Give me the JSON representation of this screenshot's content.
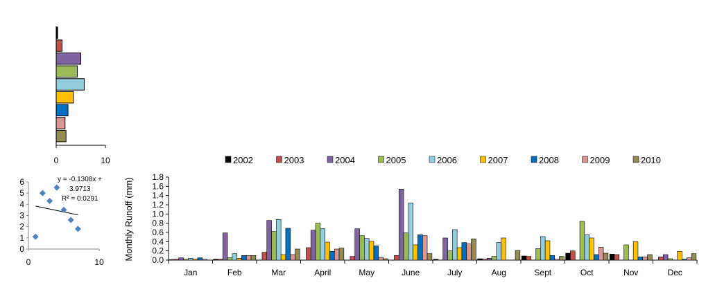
{
  "chart_data": [
    {
      "type": "bar",
      "orientation": "horizontal",
      "series_names": [
        "2002",
        "2003",
        "2004",
        "2005",
        "2006",
        "2007",
        "2008",
        "2009",
        "2010"
      ],
      "values": [
        0.3,
        1.2,
        5.0,
        4.3,
        5.7,
        3.5,
        2.4,
        1.8,
        2.0
      ],
      "xlim": [
        0,
        10
      ],
      "xticks": [
        "0",
        "10"
      ],
      "colors": [
        "#000000",
        "#c0504d",
        "#8064a2",
        "#9bbb59",
        "#93cddd",
        "#ffc000",
        "#0070c0",
        "#d99694",
        "#948a54"
      ]
    },
    {
      "type": "scatter",
      "x": [
        1,
        2,
        3,
        4,
        5,
        6,
        7
      ],
      "y": [
        1.1,
        5.0,
        4.3,
        5.5,
        3.5,
        2.6,
        1.8
      ],
      "xlim": [
        0,
        10
      ],
      "ylim": [
        0,
        6
      ],
      "xticks": [
        "0",
        "10"
      ],
      "yticks": [
        "0",
        "1",
        "2",
        "3",
        "4",
        "5",
        "6"
      ],
      "trendline": {
        "slope": -0.1308,
        "intercept": 3.9713
      },
      "equation_lines": [
        "y = -0.1308x +",
        "3.9713",
        "R² = 0.0291"
      ],
      "marker_color": "#4f81bd"
    },
    {
      "type": "bar",
      "ylabel": "Monthly  Runoff (mm)",
      "ylim": [
        0,
        1.8
      ],
      "yticks": [
        "0.0",
        "0.2",
        "0.4",
        "0.6",
        "0.8",
        "1.0",
        "1.2",
        "1.4",
        "1.6",
        "1.8"
      ],
      "categories": [
        "Jan",
        "Feb",
        "Mar",
        "April",
        "May",
        "June",
        "July",
        "Aug",
        "Sept",
        "Oct",
        "Nov",
        "Dec"
      ],
      "legend_position": "top",
      "series": [
        {
          "name": "2002",
          "color": "#000000",
          "values": [
            0.01,
            0.02,
            0.0,
            0.0,
            0.0,
            0.0,
            0.02,
            0.03,
            0.09,
            0.15,
            0.13,
            0.0
          ]
        },
        {
          "name": "2003",
          "color": "#c0504d",
          "values": [
            0.02,
            0.02,
            0.17,
            0.27,
            0.08,
            0.1,
            0.0,
            0.02,
            0.08,
            0.2,
            0.12,
            0.07
          ]
        },
        {
          "name": "2004",
          "color": "#8064a2",
          "values": [
            0.05,
            0.59,
            0.86,
            0.65,
            0.68,
            1.54,
            0.48,
            0.04,
            0.0,
            0.0,
            0.0,
            0.12
          ]
        },
        {
          "name": "2005",
          "color": "#9bbb59",
          "values": [
            0.02,
            0.05,
            0.62,
            0.8,
            0.53,
            0.59,
            0.2,
            0.08,
            0.25,
            0.84,
            0.33,
            0.03
          ]
        },
        {
          "name": "2006",
          "color": "#93cddd",
          "values": [
            0.04,
            0.14,
            0.88,
            0.68,
            0.47,
            1.24,
            0.66,
            0.38,
            0.51,
            0.55,
            0.0,
            0.0
          ]
        },
        {
          "name": "2007",
          "color": "#ffc000",
          "values": [
            0.02,
            0.04,
            0.12,
            0.39,
            0.41,
            0.33,
            0.27,
            0.48,
            0.42,
            0.48,
            0.4,
            0.19
          ]
        },
        {
          "name": "2008",
          "color": "#0070c0",
          "values": [
            0.05,
            0.1,
            0.69,
            0.19,
            0.31,
            0.55,
            0.38,
            0.0,
            0.1,
            0.12,
            0.07,
            0.02
          ]
        },
        {
          "name": "2009",
          "color": "#d99694",
          "values": [
            0.02,
            0.1,
            0.12,
            0.24,
            0.06,
            0.53,
            0.35,
            0.0,
            0.02,
            0.28,
            0.07,
            0.05
          ]
        },
        {
          "name": "2010",
          "color": "#948a54",
          "values": [
            0.0,
            0.1,
            0.24,
            0.26,
            0.03,
            0.14,
            0.46,
            0.21,
            0.08,
            0.15,
            0.12,
            0.14
          ]
        }
      ]
    }
  ]
}
